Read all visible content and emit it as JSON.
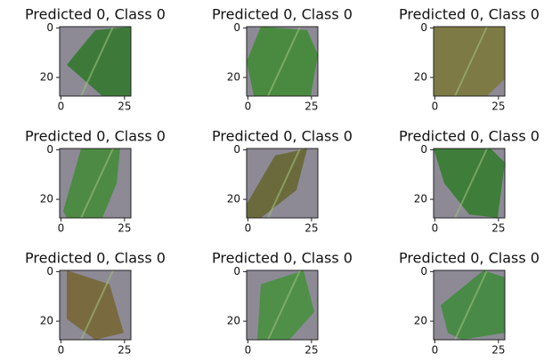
{
  "chart_data": [
    {
      "type": "image",
      "title": "Predicted 0, Class 0",
      "xlim": [
        -0.5,
        27.5
      ],
      "ylim": [
        27.5,
        -0.5
      ],
      "xticks": [
        0,
        25
      ],
      "yticks": [
        0,
        20
      ]
    },
    {
      "type": "image",
      "title": "Predicted 0, Class 0",
      "xlim": [
        -0.5,
        27.5
      ],
      "ylim": [
        27.5,
        -0.5
      ],
      "xticks": [
        0,
        25
      ],
      "yticks": [
        0,
        20
      ]
    },
    {
      "type": "image",
      "title": "Predicted 0, Class 0",
      "xlim": [
        -0.5,
        27.5
      ],
      "ylim": [
        27.5,
        -0.5
      ],
      "xticks": [
        0,
        25
      ],
      "yticks": [
        0,
        20
      ]
    },
    {
      "type": "image",
      "title": "Predicted 0, Class 0",
      "xlim": [
        -0.5,
        27.5
      ],
      "ylim": [
        27.5,
        -0.5
      ],
      "xticks": [
        0,
        25
      ],
      "yticks": [
        0,
        20
      ]
    },
    {
      "type": "image",
      "title": "Predicted 0, Class 0",
      "xlim": [
        -0.5,
        27.5
      ],
      "ylim": [
        27.5,
        -0.5
      ],
      "xticks": [
        0,
        25
      ],
      "yticks": [
        0,
        20
      ]
    },
    {
      "type": "image",
      "title": "Predicted 0, Class 0",
      "xlim": [
        -0.5,
        27.5
      ],
      "ylim": [
        27.5,
        -0.5
      ],
      "xticks": [
        0,
        25
      ],
      "yticks": [
        0,
        20
      ]
    },
    {
      "type": "image",
      "title": "Predicted 0, Class 0",
      "xlim": [
        -0.5,
        27.5
      ],
      "ylim": [
        27.5,
        -0.5
      ],
      "xticks": [
        0,
        25
      ],
      "yticks": [
        0,
        20
      ]
    },
    {
      "type": "image",
      "title": "Predicted 0, Class 0",
      "xlim": [
        -0.5,
        27.5
      ],
      "ylim": [
        27.5,
        -0.5
      ],
      "xticks": [
        0,
        25
      ],
      "yticks": [
        0,
        20
      ]
    },
    {
      "type": "image",
      "title": "Predicted 0, Class 0",
      "xlim": [
        -0.5,
        27.5
      ],
      "ylim": [
        27.5,
        -0.5
      ],
      "xticks": [
        0,
        25
      ],
      "yticks": [
        0,
        20
      ]
    }
  ]
}
